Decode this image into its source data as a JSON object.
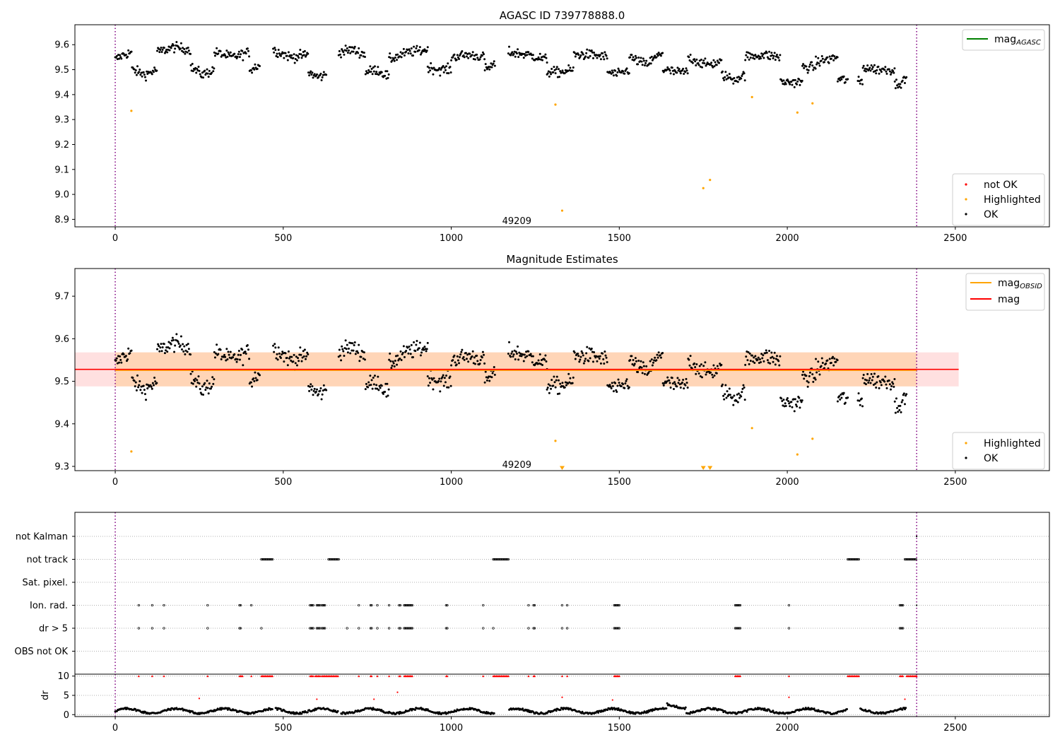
{
  "chart_data": [
    {
      "type": "scatter",
      "title": "AGASC ID 739778888.0",
      "xlim": [
        -120,
        2780
      ],
      "ylim": [
        8.87,
        9.68
      ],
      "xticks": [
        0,
        500,
        1000,
        1500,
        2000,
        2500
      ],
      "yticks": [
        8.9,
        9.0,
        9.1,
        9.2,
        9.3,
        9.4,
        9.5,
        9.6
      ],
      "vlines": [
        0,
        2385
      ],
      "annotations": [
        {
          "text": "49209",
          "x": 1195,
          "y": 8.895
        }
      ],
      "legend_lines": [
        {
          "label": "mag",
          "sub": "AGASC",
          "color": "#008000"
        }
      ],
      "legend_markers": [
        {
          "label": "not OK",
          "color": "#ff0000"
        },
        {
          "label": "Highlighted",
          "color": "#ffa500"
        },
        {
          "label": "OK",
          "color": "#000000"
        }
      ],
      "segments": [
        {
          "x": [
            0,
            50
          ],
          "levels": [
            9.54,
            9.56,
            9.57
          ]
        },
        {
          "x": [
            50,
            125
          ],
          "levels": [
            9.5,
            9.48,
            9.5
          ]
        },
        {
          "x": [
            125,
            225
          ],
          "levels": [
            9.57,
            9.59,
            9.58
          ]
        },
        {
          "x": [
            225,
            295
          ],
          "levels": [
            9.51,
            9.48,
            9.5
          ]
        },
        {
          "x": [
            295,
            400
          ],
          "levels": [
            9.57,
            9.55,
            9.57
          ]
        },
        {
          "x": [
            400,
            430
          ],
          "levels": [
            9.5,
            9.52
          ]
        },
        {
          "x": [
            470,
            575
          ],
          "levels": [
            9.58,
            9.55,
            9.56
          ]
        },
        {
          "x": [
            575,
            630
          ],
          "levels": [
            9.49,
            9.47,
            9.48
          ]
        },
        {
          "x": [
            665,
            745
          ],
          "levels": [
            9.57,
            9.58,
            9.56
          ]
        },
        {
          "x": [
            745,
            815
          ],
          "levels": [
            9.49,
            9.5,
            9.47
          ]
        },
        {
          "x": [
            815,
            930
          ],
          "levels": [
            9.54,
            9.57,
            9.58
          ]
        },
        {
          "x": [
            930,
            1000
          ],
          "levels": [
            9.51,
            9.5,
            9.5
          ]
        },
        {
          "x": [
            1000,
            1100
          ],
          "levels": [
            9.55,
            9.56,
            9.55
          ]
        },
        {
          "x": [
            1100,
            1130
          ],
          "levels": [
            9.5,
            9.52
          ]
        },
        {
          "x": [
            1170,
            1285
          ],
          "levels": [
            9.57,
            9.56,
            9.54
          ]
        },
        {
          "x": [
            1285,
            1365
          ],
          "levels": [
            9.49,
            9.49,
            9.5
          ]
        },
        {
          "x": [
            1365,
            1465
          ],
          "levels": [
            9.56,
            9.56,
            9.55
          ]
        },
        {
          "x": [
            1465,
            1530
          ],
          "levels": [
            9.49,
            9.48,
            9.5
          ]
        },
        {
          "x": [
            1530,
            1630
          ],
          "levels": [
            9.55,
            9.52,
            9.57
          ]
        },
        {
          "x": [
            1630,
            1705
          ],
          "levels": [
            9.5,
            9.49,
            9.49
          ]
        },
        {
          "x": [
            1705,
            1805
          ],
          "levels": [
            9.55,
            9.52,
            9.53
          ]
        },
        {
          "x": [
            1805,
            1875
          ],
          "levels": [
            9.48,
            9.46,
            9.48
          ]
        },
        {
          "x": [
            1875,
            1980
          ],
          "levels": [
            9.55,
            9.56,
            9.55
          ]
        },
        {
          "x": [
            1980,
            2045
          ],
          "levels": [
            9.45,
            9.45,
            9.45
          ]
        },
        {
          "x": [
            2045,
            2085
          ],
          "levels": [
            9.51,
            9.51
          ]
        },
        {
          "x": [
            2085,
            2150
          ],
          "levels": [
            9.53,
            9.54,
            9.55
          ]
        },
        {
          "x": [
            2150,
            2180
          ],
          "levels": [
            9.46,
            9.46
          ]
        },
        {
          "x": [
            2210,
            2225
          ],
          "levels": [
            9.45,
            9.45
          ]
        },
        {
          "x": [
            2225,
            2320
          ],
          "levels": [
            9.51,
            9.5,
            9.5
          ]
        },
        {
          "x": [
            2320,
            2355
          ],
          "levels": [
            9.44,
            9.46
          ]
        }
      ],
      "scatter_noise": 0.014,
      "highlighted": [
        {
          "x": 48,
          "y": 9.335
        },
        {
          "x": 1310,
          "y": 9.36
        },
        {
          "x": 1330,
          "y": 8.935
        },
        {
          "x": 1750,
          "y": 9.025
        },
        {
          "x": 1770,
          "y": 9.058
        },
        {
          "x": 1895,
          "y": 9.39
        },
        {
          "x": 2030,
          "y": 9.328
        },
        {
          "x": 2075,
          "y": 9.365
        }
      ]
    },
    {
      "type": "scatter",
      "title": "Magnitude Estimates",
      "xlim": [
        -120,
        2780
      ],
      "ylim": [
        9.29,
        9.765
      ],
      "xticks": [
        0,
        500,
        1000,
        1500,
        2000,
        2500
      ],
      "yticks": [
        9.3,
        9.4,
        9.5,
        9.6,
        9.7
      ],
      "vlines": [
        0,
        2385
      ],
      "annotations": [
        {
          "text": "49209",
          "x": 1195,
          "y": 9.305
        }
      ],
      "mag": 9.528,
      "mag_band": [
        9.488,
        9.568
      ],
      "mag_band_x": [
        -120,
        2510
      ],
      "mag_obsid": 9.526,
      "mag_obsid_band": [
        9.488,
        9.568
      ],
      "mag_obsid_band_x": [
        0,
        2385
      ],
      "legend_lines": [
        {
          "label": "mag",
          "sub": "OBSID",
          "color": "#ffa500"
        },
        {
          "label": "mag",
          "sub": "",
          "color": "#ff0000"
        }
      ],
      "legend_markers": [
        {
          "label": "Highlighted",
          "color": "#ffa500"
        },
        {
          "label": "OK",
          "color": "#000000"
        }
      ],
      "below_range_markers": [
        1330,
        1750,
        1770
      ]
    },
    {
      "type": "scatter",
      "categories": [
        "not Kalman",
        "not track",
        "Sat. pixel.",
        "Ion. rad.",
        "dr > 5",
        "OBS not OK"
      ],
      "xlim": [
        -120,
        2780
      ],
      "xticks": [
        0,
        500,
        1000,
        1500,
        2000,
        2500
      ],
      "vlines": [
        0,
        2385
      ],
      "flag_groups": {
        "not track": [
          [
            435,
            470
          ],
          [
            635,
            665
          ],
          [
            1125,
            1170
          ],
          [
            2180,
            2215
          ],
          [
            2350,
            2385
          ]
        ],
        "Ion. rad.": [
          [
            70,
            70
          ],
          [
            110,
            110
          ],
          [
            145,
            145
          ],
          [
            275,
            275
          ],
          [
            370,
            375
          ],
          [
            405,
            405
          ],
          [
            580,
            590
          ],
          [
            600,
            610
          ],
          [
            615,
            625
          ],
          [
            725,
            725
          ],
          [
            760,
            765
          ],
          [
            780,
            780
          ],
          [
            815,
            815
          ],
          [
            845,
            850
          ],
          [
            860,
            885
          ],
          [
            985,
            990
          ],
          [
            1095,
            1095
          ],
          [
            1230,
            1230
          ],
          [
            1245,
            1250
          ],
          [
            1330,
            1330
          ],
          [
            1345,
            1345
          ],
          [
            1485,
            1500
          ],
          [
            1845,
            1860
          ],
          [
            2005,
            2005
          ],
          [
            2335,
            2345
          ]
        ],
        "dr > 5": [
          [
            70,
            70
          ],
          [
            110,
            110
          ],
          [
            145,
            145
          ],
          [
            275,
            275
          ],
          [
            370,
            375
          ],
          [
            435,
            435
          ],
          [
            580,
            590
          ],
          [
            600,
            610
          ],
          [
            615,
            625
          ],
          [
            690,
            690
          ],
          [
            725,
            725
          ],
          [
            760,
            765
          ],
          [
            780,
            780
          ],
          [
            815,
            815
          ],
          [
            845,
            850
          ],
          [
            860,
            885
          ],
          [
            985,
            990
          ],
          [
            1095,
            1095
          ],
          [
            1125,
            1125
          ],
          [
            1230,
            1230
          ],
          [
            1245,
            1250
          ],
          [
            1330,
            1330
          ],
          [
            1345,
            1345
          ],
          [
            1485,
            1500
          ],
          [
            1845,
            1860
          ],
          [
            2005,
            2005
          ],
          [
            2335,
            2345
          ]
        ]
      },
      "flag_dots": {
        "not Kalman": [
          2385
        ],
        "Ion. rad.": [
          2385
        ]
      }
    },
    {
      "type": "scatter",
      "ylabel": "dr",
      "xlim": [
        -120,
        2780
      ],
      "ylim": [
        -0.5,
        10.5
      ],
      "xticks": [
        0,
        500,
        1000,
        1500,
        2000,
        2500
      ],
      "yticks": [
        0,
        5,
        10
      ],
      "vlines": [
        0,
        2385
      ],
      "dr_gaps": [
        [
          470,
          475
        ],
        [
          665,
          670
        ],
        [
          1130,
          1170
        ],
        [
          2180,
          2215
        ],
        [
          2355,
          2385
        ]
      ],
      "dr_ge10": [
        [
          70,
          70
        ],
        [
          110,
          110
        ],
        [
          145,
          145
        ],
        [
          275,
          275
        ],
        [
          370,
          380
        ],
        [
          405,
          405
        ],
        [
          435,
          470
        ],
        [
          580,
          590
        ],
        [
          595,
          610
        ],
        [
          615,
          665
        ],
        [
          725,
          725
        ],
        [
          760,
          765
        ],
        [
          780,
          780
        ],
        [
          815,
          815
        ],
        [
          845,
          850
        ],
        [
          860,
          885
        ],
        [
          985,
          990
        ],
        [
          1095,
          1095
        ],
        [
          1125,
          1170
        ],
        [
          1230,
          1230
        ],
        [
          1245,
          1250
        ],
        [
          1330,
          1330
        ],
        [
          1345,
          1345
        ],
        [
          1485,
          1500
        ],
        [
          1845,
          1860
        ],
        [
          2005,
          2005
        ],
        [
          2180,
          2215
        ],
        [
          2335,
          2345
        ],
        [
          2355,
          2385
        ]
      ],
      "dr_points": [
        {
          "x": 250,
          "y": 4.2
        },
        {
          "x": 600,
          "y": 4.0
        },
        {
          "x": 770,
          "y": 4.0
        },
        {
          "x": 840,
          "y": 5.8
        },
        {
          "x": 1330,
          "y": 4.5
        },
        {
          "x": 1480,
          "y": 3.8
        },
        {
          "x": 2005,
          "y": 4.5
        },
        {
          "x": 2350,
          "y": 4.0
        }
      ]
    }
  ]
}
